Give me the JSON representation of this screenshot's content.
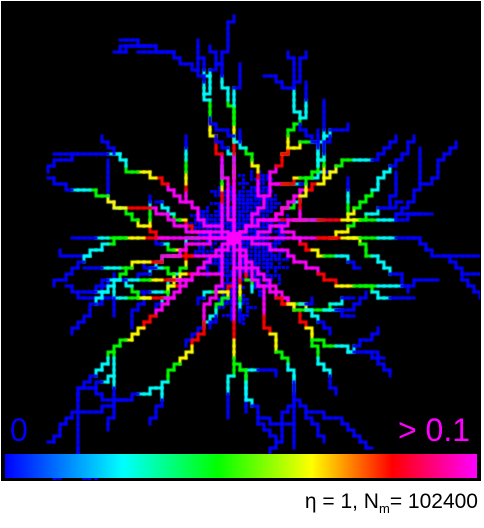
{
  "legend": {
    "min_label": "0",
    "max_label": "> 0.1",
    "colors": [
      "#0000ff",
      "#00ffff",
      "#00ff00",
      "#ffff00",
      "#ff0000",
      "#ff00ff"
    ]
  },
  "caption": {
    "eta_text": "η = 1, N",
    "n_sub": "m",
    "n_value": "= 102400"
  },
  "background_color": "#000000",
  "cluster_color": "#0000ff"
}
